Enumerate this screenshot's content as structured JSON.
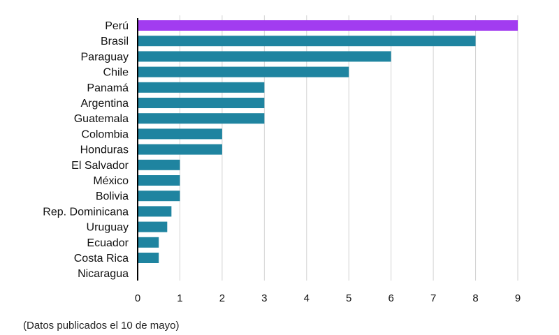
{
  "subtitle": "",
  "footnote": "(Datos publicados el 10 de mayo)",
  "colors": {
    "highlight": "#a23cf0",
    "bar": "#1f84a0",
    "grid": "#d2d2d2",
    "axis": "#000000"
  },
  "chart_data": {
    "type": "bar",
    "orientation": "horizontal",
    "categories": [
      "Perú",
      "Brasil",
      "Paraguay",
      "Chile",
      "Panamá",
      "Argentina",
      "Guatemala",
      "Colombia",
      "Honduras",
      "El Salvador",
      "México",
      "Bolivia",
      "Rep. Dominicana",
      "Uruguay",
      "Ecuador",
      "Costa Rica",
      "Nicaragua"
    ],
    "values": [
      9,
      8,
      6,
      5,
      3,
      3,
      3,
      2,
      2,
      1,
      1,
      1,
      0.8,
      0.7,
      0.5,
      0.5,
      0
    ],
    "highlight_index": 0,
    "xlim": [
      0,
      9
    ],
    "xticks": [
      0,
      1,
      2,
      3,
      4,
      5,
      6,
      7,
      8,
      9
    ],
    "grid": true,
    "title": "",
    "xlabel": "",
    "ylabel": ""
  }
}
